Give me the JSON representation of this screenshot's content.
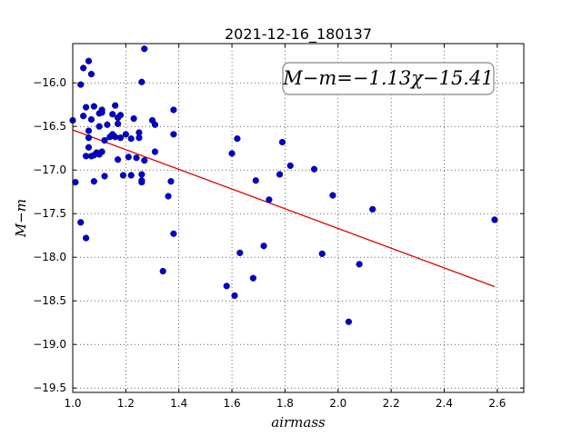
{
  "chart_data": {
    "type": "scatter",
    "title": "2021-12-16_180137",
    "xlabel": "airmass",
    "ylabel": "M−m",
    "xlim": [
      1.0,
      2.7
    ],
    "ylim": [
      -19.55,
      -15.55
    ],
    "xticks": [
      "1.0",
      "1.2",
      "1.4",
      "1.6",
      "1.8",
      "2.0",
      "2.2",
      "2.4",
      "2.6"
    ],
    "yticks": [
      "−16.0",
      "−16.5",
      "−17.0",
      "−17.5",
      "−18.0",
      "−18.5",
      "−19.0",
      "−19.5"
    ],
    "grid": true,
    "annotation": "M−m=−1.13χ−15.41",
    "fit": {
      "slope": -1.13,
      "intercept": -15.41,
      "x_range": [
        1.0,
        2.59
      ],
      "color": "#dd0000"
    },
    "point_color": "#0000cc",
    "points": [
      [
        1.0,
        -16.43
      ],
      [
        1.01,
        -17.14
      ],
      [
        1.03,
        -17.6
      ],
      [
        1.03,
        -16.02
      ],
      [
        1.04,
        -16.38
      ],
      [
        1.04,
        -15.83
      ],
      [
        1.05,
        -16.28
      ],
      [
        1.05,
        -16.84
      ],
      [
        1.05,
        -17.78
      ],
      [
        1.06,
        -15.75
      ],
      [
        1.06,
        -16.55
      ],
      [
        1.06,
        -16.63
      ],
      [
        1.06,
        -16.74
      ],
      [
        1.07,
        -16.42
      ],
      [
        1.07,
        -16.84
      ],
      [
        1.07,
        -15.9
      ],
      [
        1.08,
        -16.27
      ],
      [
        1.08,
        -16.83
      ],
      [
        1.08,
        -17.13
      ],
      [
        1.09,
        -16.8
      ],
      [
        1.1,
        -16.35
      ],
      [
        1.1,
        -16.5
      ],
      [
        1.1,
        -16.82
      ],
      [
        1.11,
        -16.31
      ],
      [
        1.11,
        -16.34
      ],
      [
        1.11,
        -16.79
      ],
      [
        1.12,
        -16.66
      ],
      [
        1.12,
        -17.07
      ],
      [
        1.13,
        -16.48
      ],
      [
        1.14,
        -16.62
      ],
      [
        1.15,
        -16.36
      ],
      [
        1.15,
        -16.59
      ],
      [
        1.16,
        -16.26
      ],
      [
        1.16,
        -16.62
      ],
      [
        1.17,
        -16.4
      ],
      [
        1.17,
        -16.47
      ],
      [
        1.17,
        -16.88
      ],
      [
        1.18,
        -16.37
      ],
      [
        1.18,
        -16.63
      ],
      [
        1.19,
        -17.06
      ],
      [
        1.2,
        -16.59
      ],
      [
        1.21,
        -16.85
      ],
      [
        1.22,
        -16.64
      ],
      [
        1.22,
        -17.06
      ],
      [
        1.23,
        -16.41
      ],
      [
        1.24,
        -16.86
      ],
      [
        1.25,
        -16.57
      ],
      [
        1.25,
        -16.63
      ],
      [
        1.26,
        -15.99
      ],
      [
        1.26,
        -17.05
      ],
      [
        1.26,
        -17.12
      ],
      [
        1.26,
        -17.14
      ],
      [
        1.27,
        -15.61
      ],
      [
        1.27,
        -16.89
      ],
      [
        1.3,
        -16.43
      ],
      [
        1.31,
        -16.48
      ],
      [
        1.31,
        -16.79
      ],
      [
        1.34,
        -18.16
      ],
      [
        1.36,
        -17.3
      ],
      [
        1.37,
        -17.13
      ],
      [
        1.38,
        -16.59
      ],
      [
        1.38,
        -16.31
      ],
      [
        1.38,
        -17.73
      ],
      [
        1.58,
        -18.33
      ],
      [
        1.6,
        -16.81
      ],
      [
        1.61,
        -18.44
      ],
      [
        1.62,
        -16.64
      ],
      [
        1.63,
        -17.95
      ],
      [
        1.68,
        -18.24
      ],
      [
        1.69,
        -17.12
      ],
      [
        1.72,
        -17.87
      ],
      [
        1.74,
        -17.34
      ],
      [
        1.78,
        -17.05
      ],
      [
        1.79,
        -16.68
      ],
      [
        1.82,
        -16.95
      ],
      [
        1.91,
        -16.99
      ],
      [
        1.94,
        -17.96
      ],
      [
        1.98,
        -17.29
      ],
      [
        2.04,
        -18.74
      ],
      [
        2.08,
        -18.08
      ],
      [
        2.13,
        -17.45
      ],
      [
        2.59,
        -17.57
      ]
    ]
  }
}
